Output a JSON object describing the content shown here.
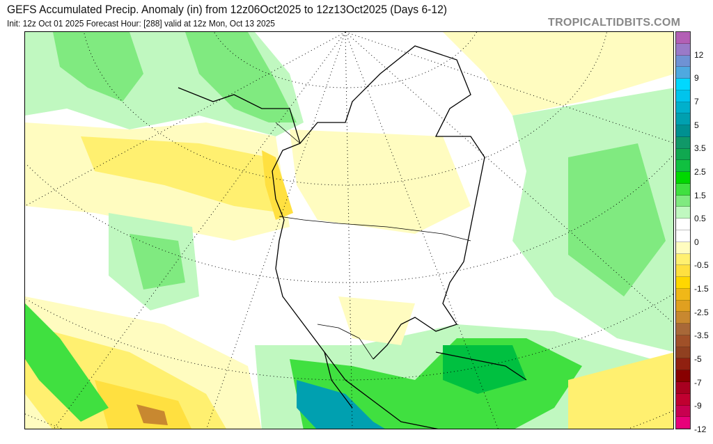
{
  "header": {
    "title": "GEFS Accumulated Precip. Anomaly (in) from 12z06Oct2025 to 12z13Oct2025 (Days 6-12)",
    "subtitle": "Init: 12z Oct 01 2025   Forecast Hour: [288]   valid at 12z Mon, Oct 13 2025",
    "brand": "TROPICALTIDBITS.COM"
  },
  "colorbar": {
    "colors": [
      "#b35fb5",
      "#9a7ac8",
      "#6f92d4",
      "#4fa9e0",
      "#00d8ff",
      "#00c4ec",
      "#00b0cc",
      "#00a0b0",
      "#009090",
      "#109868",
      "#10a850",
      "#10c040",
      "#00d800",
      "#40e040",
      "#80ea80",
      "#c0f8c0",
      "#ffffff",
      "#ffffff",
      "#fffcc0",
      "#fff070",
      "#ffe040",
      "#ffd700",
      "#f0b818",
      "#e0a020",
      "#c88830",
      "#a86838",
      "#a05028",
      "#904020",
      "#902010",
      "#880000",
      "#a80020",
      "#c00030",
      "#c80050",
      "#e8007a"
    ],
    "labels": [
      "12",
      "9",
      "7",
      "5",
      "3.5",
      "2.5",
      "1.5",
      "0.5",
      "0",
      "-0.5",
      "-1.5",
      "-2.5",
      "-3.5",
      "-5",
      "-7",
      "-9",
      "-12"
    ]
  },
  "palette": {
    "wet_light": "#c0f8c0",
    "wet": "#80ea80",
    "wet_mid": "#40e040",
    "wet_dark": "#00c040",
    "teal": "#00a0b0",
    "dry_light": "#fffcc0",
    "dry": "#fff070",
    "dry_mid": "#ffe040",
    "dry_dark": "#f0b818",
    "brown": "#c88830"
  }
}
